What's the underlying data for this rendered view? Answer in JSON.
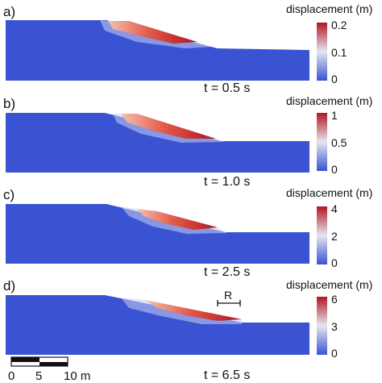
{
  "panels": [
    {
      "label": "a)",
      "time": "t = 0.5 s",
      "colorbar_title": "displacement (m)",
      "ticks": [
        "0.2",
        "0.1",
        "0"
      ]
    },
    {
      "label": "b)",
      "time": "t = 1.0 s",
      "colorbar_title": "displacement (m)",
      "ticks": [
        "1",
        "0.5",
        "0"
      ]
    },
    {
      "label": "c)",
      "time": "t = 2.5 s",
      "colorbar_title": "displacement (m)",
      "ticks": [
        "4",
        "2",
        "0"
      ]
    },
    {
      "label": "d)",
      "time": "t = 6.5 s",
      "colorbar_title": "displacement (m)",
      "ticks": [
        "6",
        "3",
        "0"
      ]
    }
  ],
  "annotation": {
    "text": "R"
  },
  "scalebar": {
    "ticks": [
      "0",
      "5",
      "10 m"
    ]
  },
  "colors": {
    "low": "#3a53d2",
    "mid": "#e6e6f0",
    "high": "#b01622",
    "slope_top": "#4a62dc"
  }
}
